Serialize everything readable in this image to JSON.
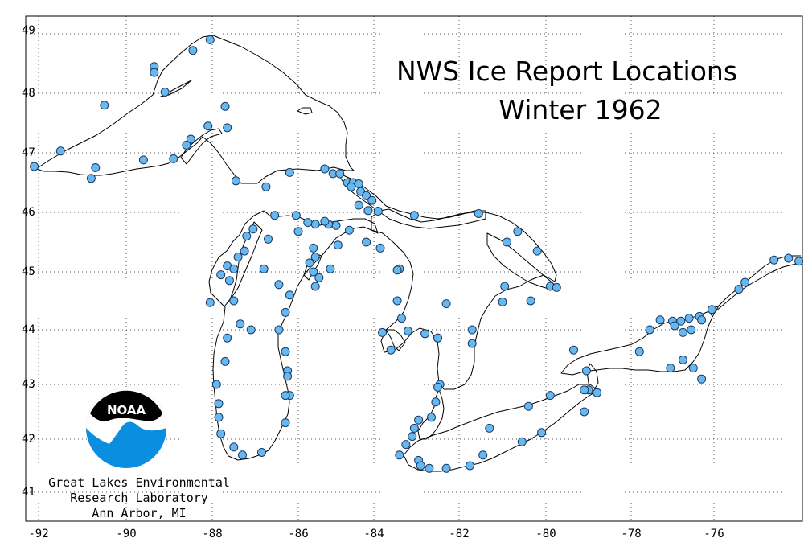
{
  "title": {
    "line1": "NWS Ice Report Locations",
    "line2": "Winter 1962"
  },
  "x_ticks": [
    "-92",
    "-90",
    "-88",
    "-86",
    "-84",
    "-82",
    "-80",
    "-78",
    "-76"
  ],
  "y_ticks": [
    "49",
    "48",
    "47",
    "46",
    "45",
    "44",
    "43",
    "42",
    "41"
  ],
  "logo": {
    "name": "noaa-logo",
    "text": "NOAA",
    "colors": {
      "blue": "#0a8ee0",
      "black": "#000000"
    }
  },
  "credit": {
    "line1": "Great Lakes Environmental",
    "line2": "Research Laboratory",
    "line3": "Ann Arbor, MI"
  },
  "colors": {
    "station": "#66b8ee",
    "station_outline": "#1a3a66",
    "coastline": "#000000",
    "grid": "#555555"
  },
  "map": {
    "lon_range": [
      -92.25,
      -74.0
    ],
    "lat_range": [
      40.7,
      49.3
    ],
    "grid": "dotted"
  },
  "stations": [
    [
      -92.1,
      46.77
    ],
    [
      -91.5,
      47.03
    ],
    [
      -90.7,
      46.75
    ],
    [
      -90.8,
      46.57
    ],
    [
      -89.6,
      46.88
    ],
    [
      -88.9,
      46.9
    ],
    [
      -88.5,
      47.23
    ],
    [
      -88.1,
      47.45
    ],
    [
      -87.65,
      47.42
    ],
    [
      -87.7,
      47.78
    ],
    [
      -88.6,
      47.13
    ],
    [
      -89.35,
      48.45
    ],
    [
      -89.35,
      48.35
    ],
    [
      -89.1,
      48.02
    ],
    [
      -90.5,
      47.8
    ],
    [
      -88.45,
      48.72
    ],
    [
      -88.05,
      48.9
    ],
    [
      -87.45,
      46.53
    ],
    [
      -86.75,
      46.43
    ],
    [
      -86.2,
      46.67
    ],
    [
      -85.3,
      46.73
    ],
    [
      -85.08,
      46.65
    ],
    [
      -84.9,
      46.65
    ],
    [
      -84.7,
      46.5
    ],
    [
      -84.55,
      46.5
    ],
    [
      -84.6,
      46.43
    ],
    [
      -84.4,
      46.48
    ],
    [
      -84.35,
      46.35
    ],
    [
      -84.2,
      46.28
    ],
    [
      -84.05,
      46.2
    ],
    [
      -83.9,
      46.02
    ],
    [
      -84.4,
      46.12
    ],
    [
      -84.15,
      46.03
    ],
    [
      -83.05,
      45.95
    ],
    [
      -81.55,
      45.98
    ],
    [
      -80.9,
      45.5
    ],
    [
      -80.65,
      45.68
    ],
    [
      -80.2,
      45.35
    ],
    [
      -79.9,
      44.75
    ],
    [
      -79.75,
      44.73
    ],
    [
      -80.35,
      44.5
    ],
    [
      -81.0,
      44.48
    ],
    [
      -80.95,
      44.75
    ],
    [
      -84.65,
      45.7
    ],
    [
      -85.0,
      45.78
    ],
    [
      -85.2,
      45.8
    ],
    [
      -85.3,
      45.85
    ],
    [
      -85.55,
      45.8
    ],
    [
      -85.75,
      45.83
    ],
    [
      -86.05,
      45.95
    ],
    [
      -86.55,
      45.95
    ],
    [
      -86.0,
      45.68
    ],
    [
      -86.7,
      45.55
    ],
    [
      -87.05,
      45.72
    ],
    [
      -87.2,
      45.6
    ],
    [
      -87.25,
      45.35
    ],
    [
      -87.4,
      45.25
    ],
    [
      -87.65,
      45.1
    ],
    [
      -87.8,
      44.95
    ],
    [
      -88.05,
      44.47
    ],
    [
      -87.5,
      45.05
    ],
    [
      -87.6,
      44.85
    ],
    [
      -87.5,
      44.5
    ],
    [
      -87.35,
      44.1
    ],
    [
      -87.1,
      44.0
    ],
    [
      -86.8,
      45.05
    ],
    [
      -86.45,
      44.78
    ],
    [
      -86.2,
      44.6
    ],
    [
      -86.3,
      44.3
    ],
    [
      -86.45,
      44.0
    ],
    [
      -86.3,
      43.6
    ],
    [
      -86.25,
      43.25
    ],
    [
      -86.25,
      43.15
    ],
    [
      -86.2,
      42.8
    ],
    [
      -86.3,
      42.8
    ],
    [
      -86.3,
      42.3
    ],
    [
      -86.85,
      41.75
    ],
    [
      -87.3,
      41.7
    ],
    [
      -87.5,
      41.85
    ],
    [
      -87.8,
      42.1
    ],
    [
      -87.85,
      42.4
    ],
    [
      -87.85,
      42.65
    ],
    [
      -87.9,
      43.0
    ],
    [
      -87.7,
      43.42
    ],
    [
      -87.65,
      43.85
    ],
    [
      -85.15,
      45.05
    ],
    [
      -85.45,
      44.9
    ],
    [
      -85.55,
      44.75
    ],
    [
      -85.6,
      45.0
    ],
    [
      -85.7,
      45.15
    ],
    [
      -85.55,
      45.25
    ],
    [
      -85.6,
      45.4
    ],
    [
      -84.95,
      45.45
    ],
    [
      -84.2,
      45.5
    ],
    [
      -83.85,
      45.4
    ],
    [
      -83.4,
      45.05
    ],
    [
      -83.45,
      45.03
    ],
    [
      -83.45,
      44.5
    ],
    [
      -83.35,
      44.2
    ],
    [
      -83.8,
      43.95
    ],
    [
      -83.6,
      43.63
    ],
    [
      -83.2,
      43.98
    ],
    [
      -82.8,
      43.93
    ],
    [
      -82.5,
      43.85
    ],
    [
      -82.5,
      43.85
    ],
    [
      -82.3,
      44.45
    ],
    [
      -81.7,
      44.0
    ],
    [
      -81.7,
      43.75
    ],
    [
      -82.45,
      43.0
    ],
    [
      -82.5,
      42.95
    ],
    [
      -82.55,
      42.68
    ],
    [
      -82.65,
      42.4
    ],
    [
      -82.95,
      42.35
    ],
    [
      -83.05,
      42.2
    ],
    [
      -83.1,
      42.05
    ],
    [
      -83.25,
      41.9
    ],
    [
      -83.4,
      41.7
    ],
    [
      -82.95,
      41.6
    ],
    [
      -82.9,
      41.5
    ],
    [
      -82.7,
      41.45
    ],
    [
      -82.3,
      41.45
    ],
    [
      -81.75,
      41.5
    ],
    [
      -81.45,
      41.7
    ],
    [
      -80.55,
      41.95
    ],
    [
      -80.1,
      42.12
    ],
    [
      -81.3,
      42.2
    ],
    [
      -80.4,
      42.6
    ],
    [
      -79.9,
      42.8
    ],
    [
      -79.1,
      42.5
    ],
    [
      -79.35,
      43.63
    ],
    [
      -79.05,
      43.25
    ],
    [
      -79.0,
      42.9
    ],
    [
      -78.8,
      42.85
    ],
    [
      -79.1,
      42.9
    ],
    [
      -77.8,
      43.6
    ],
    [
      -77.05,
      43.3
    ],
    [
      -76.75,
      43.45
    ],
    [
      -76.5,
      43.3
    ],
    [
      -76.3,
      43.1
    ],
    [
      -77.55,
      44.0
    ],
    [
      -77.3,
      44.17
    ],
    [
      -77.0,
      44.15
    ],
    [
      -76.8,
      44.15
    ],
    [
      -76.6,
      44.2
    ],
    [
      -76.35,
      44.23
    ],
    [
      -76.3,
      44.17
    ],
    [
      -76.05,
      44.35
    ],
    [
      -76.95,
      44.07
    ],
    [
      -76.75,
      43.95
    ],
    [
      -76.55,
      44.0
    ],
    [
      -75.4,
      44.7
    ],
    [
      -75.25,
      44.82
    ],
    [
      -74.55,
      45.2
    ],
    [
      -74.2,
      45.23
    ],
    [
      -73.95,
      45.18
    ]
  ]
}
